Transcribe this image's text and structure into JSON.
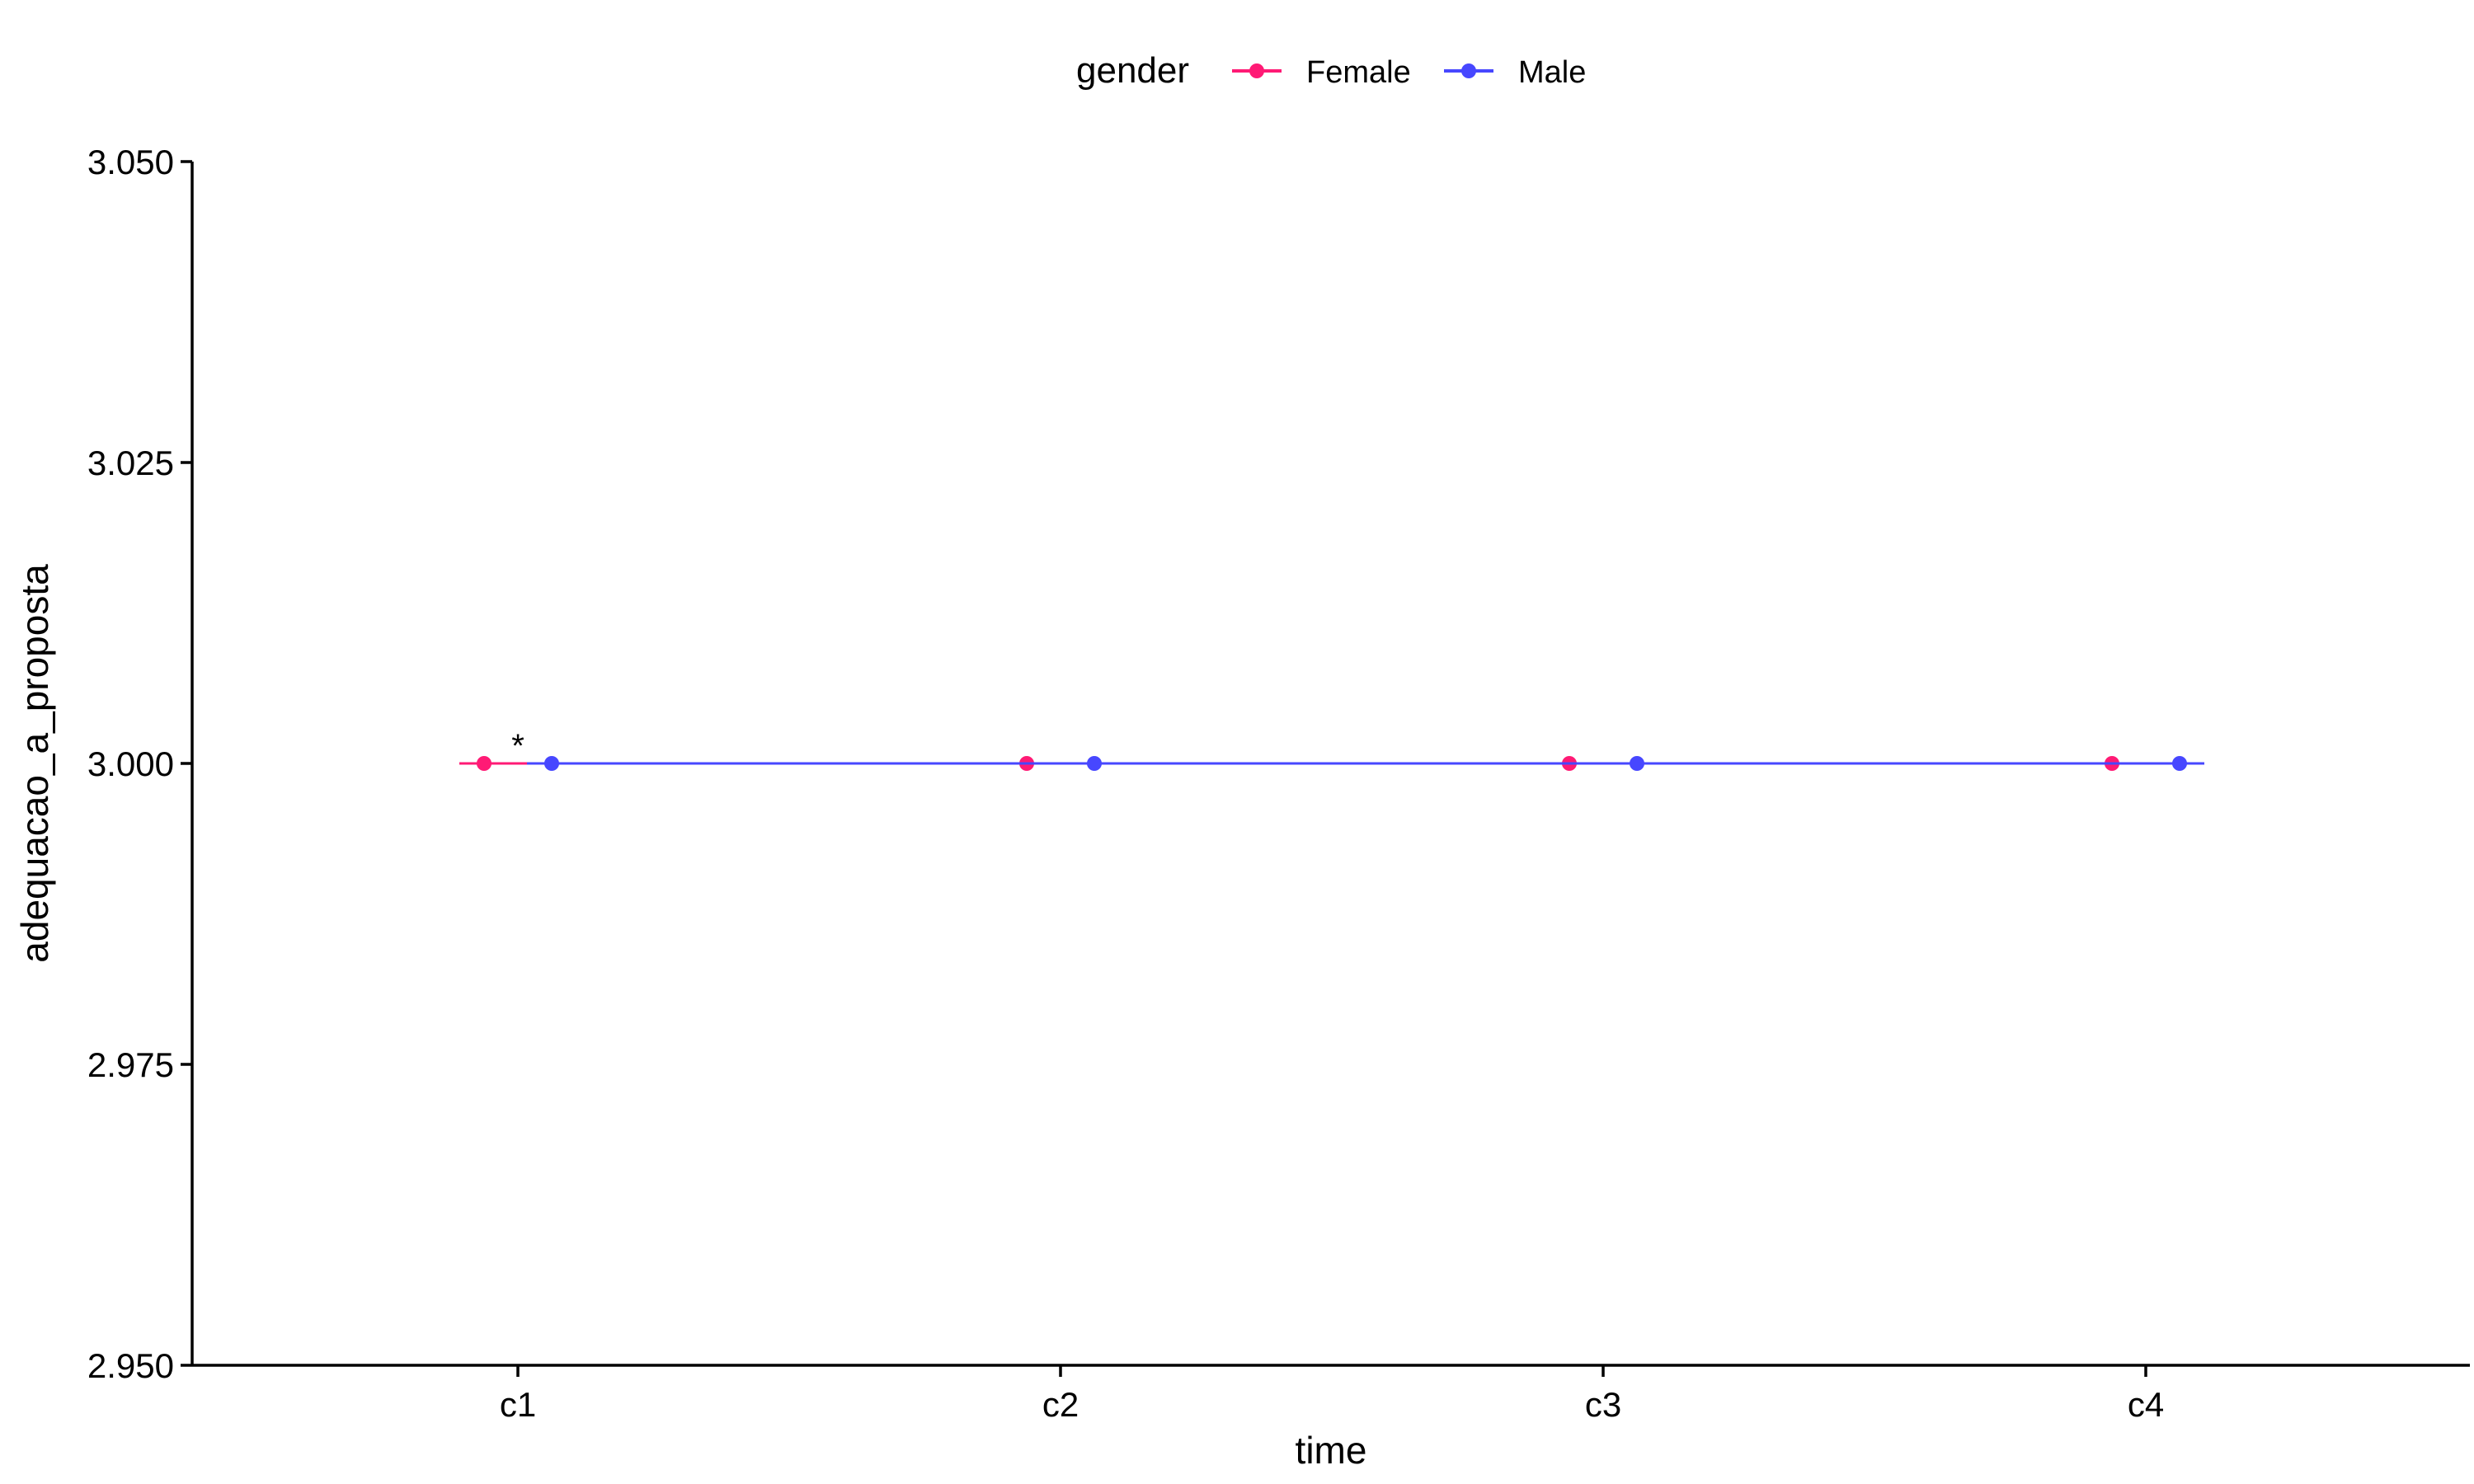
{
  "chart_data": {
    "type": "line",
    "title": "",
    "xlabel": "time",
    "ylabel": "adequacao_a_proposta",
    "categories": [
      "c1",
      "c2",
      "c3",
      "c4"
    ],
    "ylim": [
      2.95,
      3.05
    ],
    "yticks": [
      "2.950",
      "2.975",
      "3.000",
      "3.025",
      "3.050"
    ],
    "grid": false,
    "legend": {
      "position": "top",
      "title": "gender"
    },
    "series": [
      {
        "name": "Female",
        "color": "#FF1A75",
        "values": [
          3.0,
          3.0,
          3.0,
          3.0
        ],
        "error": [
          0,
          0,
          0,
          0
        ]
      },
      {
        "name": "Male",
        "color": "#4747FF",
        "values": [
          3.0,
          3.0,
          3.0,
          3.0
        ],
        "error": [
          0,
          0,
          0,
          0
        ]
      }
    ],
    "annotations": [
      {
        "text": "*",
        "category": "c1",
        "y": 3.0
      }
    ]
  }
}
